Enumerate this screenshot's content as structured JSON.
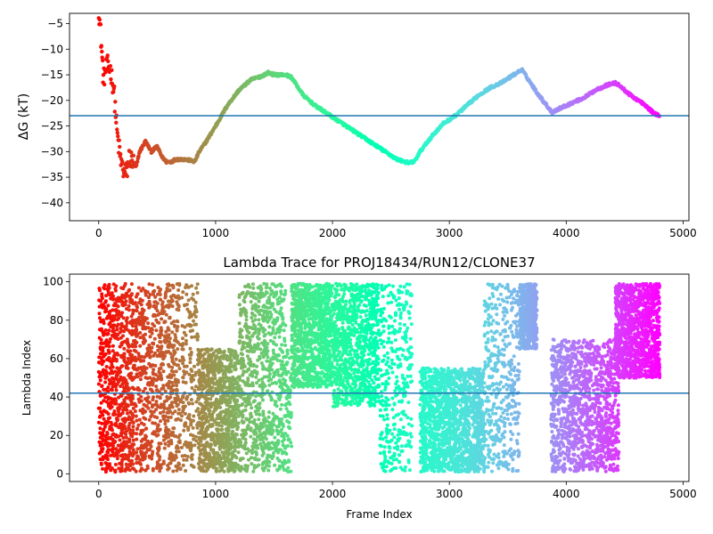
{
  "chart_data": [
    {
      "type": "scatter",
      "title": "",
      "xlabel": "",
      "ylabel": "ΔG (kT)",
      "xlim": [
        -250,
        5050
      ],
      "ylim": [
        -43.5,
        -3
      ],
      "xticks": [
        0,
        1000,
        2000,
        3000,
        4000,
        5000
      ],
      "yticks": [
        -40,
        -35,
        -30,
        -25,
        -20,
        -15,
        -10,
        -5
      ],
      "hline": -23,
      "hline_color": "#1f77b4",
      "colormap": "rainbow",
      "color_by": "frame order (red = early, violet = late)",
      "trace": [
        [
          0,
          -2
        ],
        [
          20,
          -8
        ],
        [
          30,
          -12
        ],
        [
          40,
          -16
        ],
        [
          60,
          -14
        ],
        [
          80,
          -13
        ],
        [
          100,
          -14
        ],
        [
          130,
          -18
        ],
        [
          160,
          -27
        ],
        [
          190,
          -32
        ],
        [
          215,
          -34
        ],
        [
          240,
          -34
        ],
        [
          260,
          -31
        ],
        [
          290,
          -32
        ],
        [
          320,
          -33
        ],
        [
          350,
          -30
        ],
        [
          400,
          -28
        ],
        [
          450,
          -30
        ],
        [
          500,
          -29
        ],
        [
          540,
          -31
        ],
        [
          580,
          -32
        ],
        [
          620,
          -32
        ],
        [
          660,
          -31.5
        ],
        [
          720,
          -31.5
        ],
        [
          780,
          -31.7
        ],
        [
          820,
          -32
        ],
        [
          860,
          -30
        ],
        [
          920,
          -28
        ],
        [
          1000,
          -25
        ],
        [
          1100,
          -21
        ],
        [
          1200,
          -18
        ],
        [
          1300,
          -16
        ],
        [
          1400,
          -15.2
        ],
        [
          1450,
          -14.6
        ],
        [
          1500,
          -15
        ],
        [
          1600,
          -15
        ],
        [
          1650,
          -15.5
        ],
        [
          1750,
          -19
        ],
        [
          1850,
          -21
        ],
        [
          1950,
          -22.5
        ],
        [
          2050,
          -24
        ],
        [
          2150,
          -25.5
        ],
        [
          2250,
          -27
        ],
        [
          2350,
          -28.5
        ],
        [
          2450,
          -30
        ],
        [
          2550,
          -31.5
        ],
        [
          2650,
          -32.2
        ],
        [
          2700,
          -32
        ],
        [
          2750,
          -30
        ],
        [
          2850,
          -27
        ],
        [
          2950,
          -24.5
        ],
        [
          3050,
          -23
        ],
        [
          3150,
          -21
        ],
        [
          3250,
          -19
        ],
        [
          3350,
          -17.5
        ],
        [
          3450,
          -16.5
        ],
        [
          3550,
          -15
        ],
        [
          3620,
          -14
        ],
        [
          3650,
          -15
        ],
        [
          3750,
          -18.5
        ],
        [
          3850,
          -21.5
        ],
        [
          3880,
          -22.3
        ],
        [
          3950,
          -21.5
        ],
        [
          4050,
          -20.5
        ],
        [
          4150,
          -19.5
        ],
        [
          4250,
          -18
        ],
        [
          4350,
          -17
        ],
        [
          4420,
          -16.6
        ],
        [
          4450,
          -17
        ],
        [
          4550,
          -19
        ],
        [
          4650,
          -20.5
        ],
        [
          4750,
          -22.5
        ],
        [
          4800,
          -23
        ]
      ]
    },
    {
      "type": "scatter",
      "title": "Lambda Trace for PROJ18434/RUN12/CLONE37",
      "xlabel": "Frame Index",
      "ylabel": "Lambda Index",
      "xlim": [
        -250,
        5050
      ],
      "ylim": [
        -4,
        104
      ],
      "xticks": [
        0,
        1000,
        2000,
        3000,
        4000,
        5000
      ],
      "yticks": [
        0,
        20,
        40,
        60,
        80,
        100
      ],
      "hline": 42,
      "hline_color": "#1f77b4",
      "colormap": "rainbow",
      "color_by": "frame order (red = early, violet = late)",
      "segments": [
        {
          "x": [
            0,
            60
          ],
          "y": [
            2,
            99
          ],
          "density": 2.2
        },
        {
          "x": [
            60,
            300
          ],
          "y": [
            1,
            99
          ],
          "density": 2.6
        },
        {
          "x": [
            300,
            700
          ],
          "y": [
            1,
            99
          ],
          "density": 1.8
        },
        {
          "x": [
            700,
            850
          ],
          "y": [
            1,
            99
          ],
          "density": 1.2
        },
        {
          "x": [
            850,
            1200
          ],
          "y": [
            1,
            65
          ],
          "density": 2.6
        },
        {
          "x": [
            1200,
            1600
          ],
          "y": [
            1,
            99
          ],
          "density": 2.0
        },
        {
          "x": [
            1600,
            1650
          ],
          "y": [
            1,
            65
          ],
          "density": 1.2
        },
        {
          "x": [
            1650,
            2000
          ],
          "y": [
            45,
            99
          ],
          "density": 3.0
        },
        {
          "x": [
            2000,
            2400
          ],
          "y": [
            35,
            99
          ],
          "density": 2.2
        },
        {
          "x": [
            2400,
            2680
          ],
          "y": [
            1,
            99
          ],
          "density": 1.2
        },
        {
          "x": [
            2750,
            3300
          ],
          "y": [
            1,
            55
          ],
          "density": 2.8
        },
        {
          "x": [
            3300,
            3600
          ],
          "y": [
            1,
            99
          ],
          "density": 1.4
        },
        {
          "x": [
            3600,
            3750
          ],
          "y": [
            65,
            99
          ],
          "density": 3.2
        },
        {
          "x": [
            3870,
            4450
          ],
          "y": [
            1,
            70
          ],
          "density": 2.2
        },
        {
          "x": [
            4420,
            4800
          ],
          "y": [
            50,
            99
          ],
          "density": 3.0
        }
      ]
    }
  ]
}
